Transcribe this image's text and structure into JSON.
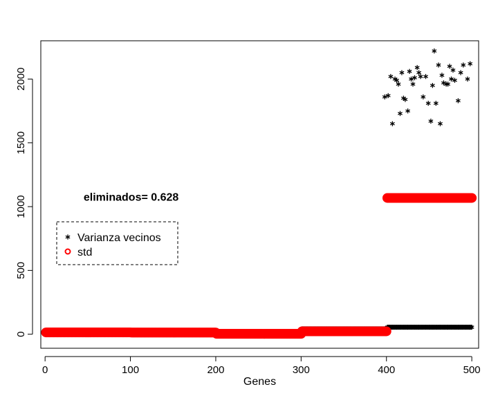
{
  "chart_data": {
    "type": "scatter",
    "title": "",
    "xlabel": "Genes",
    "ylabel": "",
    "xlim": [
      -5,
      508
    ],
    "ylim": [
      -110,
      2300
    ],
    "xticks": [
      0,
      100,
      200,
      300,
      400,
      500
    ],
    "yticks": [
      0,
      500,
      1000,
      1500,
      2000
    ],
    "annotation": {
      "text": "eliminados= 0.628",
      "x": 110,
      "y": 1080
    },
    "legend": {
      "placement": "left",
      "entries": [
        {
          "label": "Varianza vecinos",
          "symbol": "*",
          "color": "#000000"
        },
        {
          "label": "std",
          "symbol": "o",
          "color": "#ff0000"
        }
      ]
    },
    "series": [
      {
        "name": "Varianza vecinos",
        "color": "#000000",
        "marker": "*",
        "segments": [
          {
            "x_from": 1,
            "x_to": 100,
            "y": 14
          },
          {
            "x_from": 101,
            "x_to": 200,
            "y": 13
          },
          {
            "x_from": 201,
            "x_to": 300,
            "y": 4
          },
          {
            "x_from": 301,
            "x_to": 400,
            "y": 42
          },
          {
            "x_from": 401,
            "x_to": 500,
            "y": 55
          }
        ],
        "points": [
          {
            "x": 398,
            "y": 1860
          },
          {
            "x": 402,
            "y": 1870
          },
          {
            "x": 405,
            "y": 2020
          },
          {
            "x": 407,
            "y": 1650
          },
          {
            "x": 410,
            "y": 2000
          },
          {
            "x": 412,
            "y": 1990
          },
          {
            "x": 414,
            "y": 1960
          },
          {
            "x": 416,
            "y": 1730
          },
          {
            "x": 418,
            "y": 2050
          },
          {
            "x": 420,
            "y": 1850
          },
          {
            "x": 422,
            "y": 1840
          },
          {
            "x": 425,
            "y": 1750
          },
          {
            "x": 427,
            "y": 2060
          },
          {
            "x": 429,
            "y": 2000
          },
          {
            "x": 431,
            "y": 1960
          },
          {
            "x": 433,
            "y": 2010
          },
          {
            "x": 436,
            "y": 2090
          },
          {
            "x": 438,
            "y": 2050
          },
          {
            "x": 440,
            "y": 2020
          },
          {
            "x": 443,
            "y": 1860
          },
          {
            "x": 446,
            "y": 2020
          },
          {
            "x": 449,
            "y": 1810
          },
          {
            "x": 452,
            "y": 1670
          },
          {
            "x": 454,
            "y": 1950
          },
          {
            "x": 456,
            "y": 2220
          },
          {
            "x": 458,
            "y": 1810
          },
          {
            "x": 461,
            "y": 2110
          },
          {
            "x": 463,
            "y": 1650
          },
          {
            "x": 465,
            "y": 2030
          },
          {
            "x": 467,
            "y": 1970
          },
          {
            "x": 470,
            "y": 1960
          },
          {
            "x": 472,
            "y": 1960
          },
          {
            "x": 474,
            "y": 2100
          },
          {
            "x": 476,
            "y": 2000
          },
          {
            "x": 478,
            "y": 2070
          },
          {
            "x": 480,
            "y": 1990
          },
          {
            "x": 484,
            "y": 1830
          },
          {
            "x": 487,
            "y": 2050
          },
          {
            "x": 490,
            "y": 2110
          },
          {
            "x": 495,
            "y": 2000
          },
          {
            "x": 498,
            "y": 2120
          }
        ]
      },
      {
        "name": "std",
        "color": "#ff0000",
        "marker": "o",
        "segments": [
          {
            "x_from": 1,
            "x_to": 100,
            "y": 14
          },
          {
            "x_from": 101,
            "x_to": 200,
            "y": 13
          },
          {
            "x_from": 201,
            "x_to": 300,
            "y": 3
          },
          {
            "x_from": 301,
            "x_to": 400,
            "y": 23
          },
          {
            "x_from": 401,
            "x_to": 500,
            "y": 1068
          }
        ]
      }
    ]
  }
}
